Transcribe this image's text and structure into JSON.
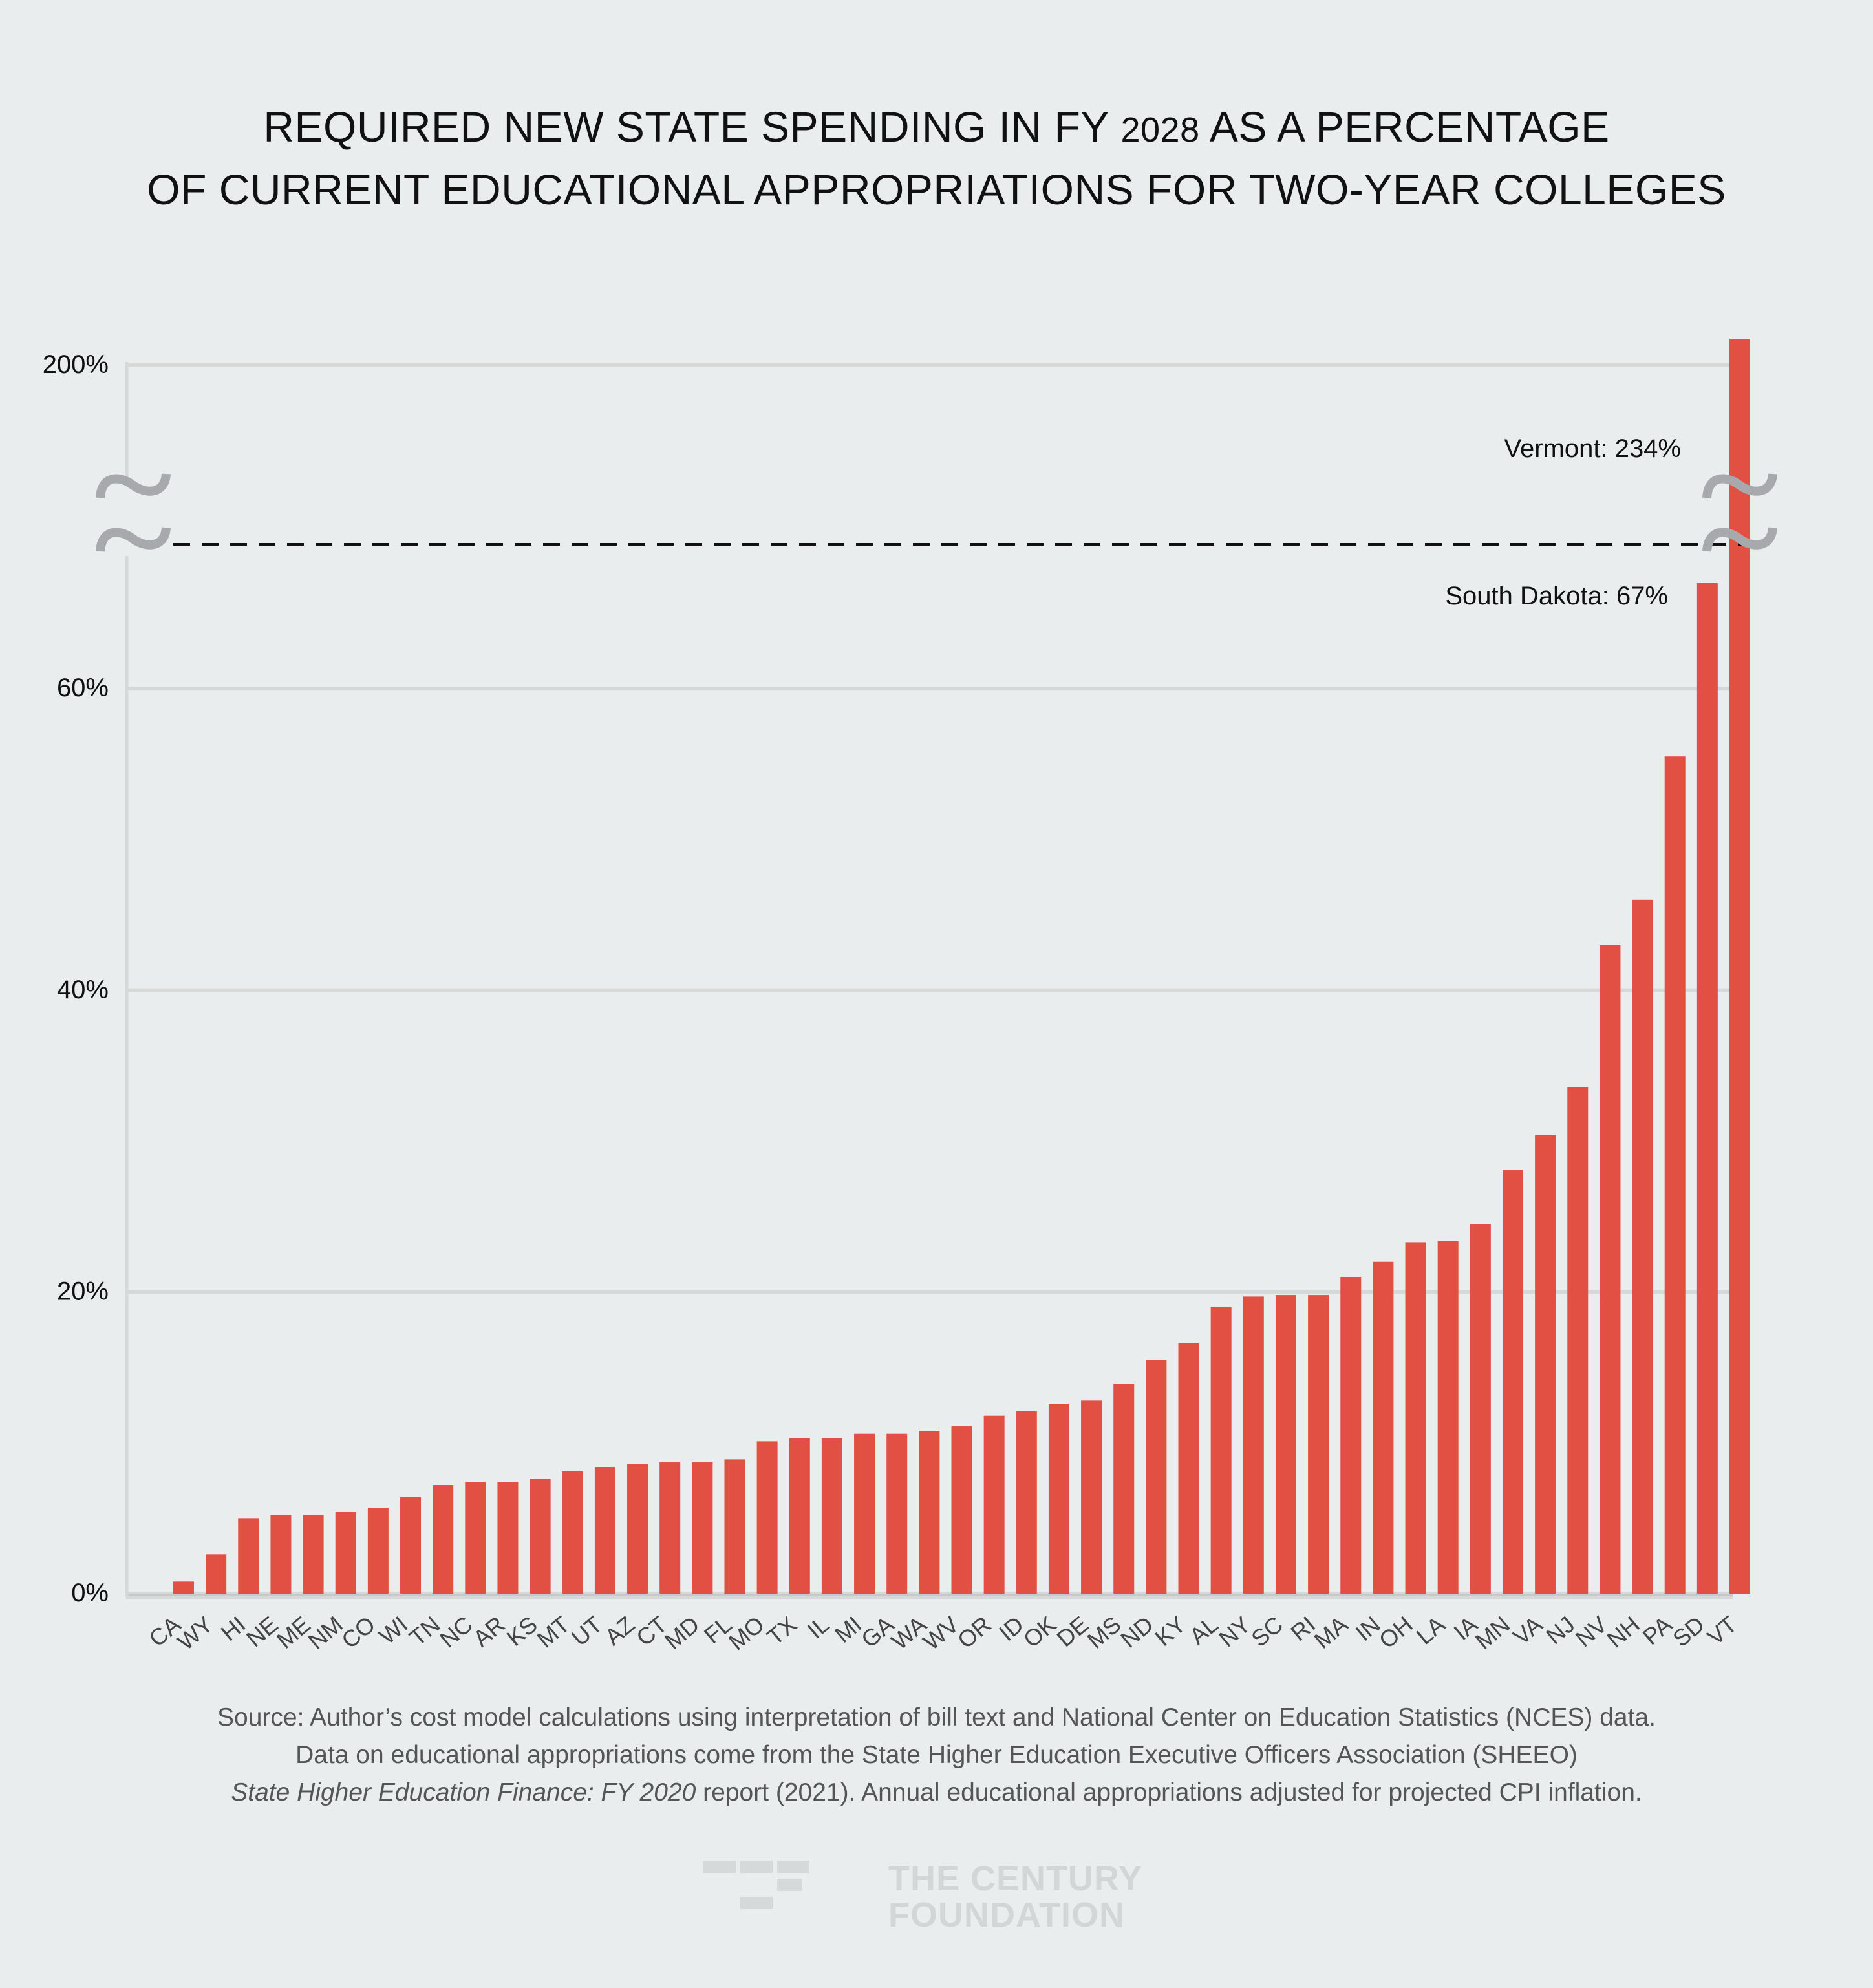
{
  "title": {
    "line1_pre": "REQUIRED NEW STATE SPENDING IN FY ",
    "line1_num": "2028",
    "line1_post": " AS A PERCENTAGE",
    "line2": "OF CURRENT EDUCATIONAL APPROPRIATIONS FOR TWO-YEAR COLLEGES"
  },
  "colors": {
    "bar": "#e24f43",
    "background": "#e9edee",
    "grid": "#d7d9d9",
    "break_mark": "#a7a9ac"
  },
  "chart_data": {
    "type": "bar",
    "title": "Required New State Spending in FY 2028 as a Percentage of Current Educational Appropriations for Two-Year Colleges",
    "xlabel": "",
    "ylabel": "",
    "ylim": [
      0,
      240
    ],
    "axis_break": {
      "from": 70,
      "to": 190
    },
    "grid": true,
    "y_ticks": [
      "0%",
      "20%",
      "40%",
      "60%",
      "200%"
    ],
    "y_tick_values": [
      0,
      20,
      40,
      60,
      200
    ],
    "categories": [
      "CA",
      "WY",
      "HI",
      "NE",
      "ME",
      "NM",
      "CO",
      "WI",
      "TN",
      "NC",
      "AR",
      "KS",
      "MT",
      "UT",
      "AZ",
      "CT",
      "MD",
      "FL",
      "MO",
      "TX",
      "IL",
      "MI",
      "GA",
      "WA",
      "WV",
      "OR",
      "ID",
      "OK",
      "DE",
      "MS",
      "ND",
      "KY",
      "AL",
      "NY",
      "SC",
      "RI",
      "MA",
      "IN",
      "OH",
      "LA",
      "IA",
      "MN",
      "VA",
      "NJ",
      "NV",
      "NH",
      "PA",
      "SD",
      "VT"
    ],
    "values": [
      0.8,
      2.6,
      5.0,
      5.2,
      5.2,
      5.4,
      5.7,
      6.4,
      7.2,
      7.4,
      7.4,
      7.6,
      8.1,
      8.4,
      8.6,
      8.7,
      8.7,
      8.9,
      10.1,
      10.3,
      10.3,
      10.6,
      10.6,
      10.8,
      11.1,
      11.8,
      12.1,
      12.6,
      12.8,
      13.9,
      15.5,
      16.6,
      19.0,
      19.7,
      19.8,
      19.8,
      21.0,
      22.0,
      23.3,
      23.4,
      24.5,
      28.1,
      30.4,
      33.6,
      43.0,
      46.0,
      55.5,
      67,
      234
    ],
    "annotations": [
      {
        "state": "VT",
        "text": "Vermont: 234%"
      },
      {
        "state": "SD",
        "text": "South Dakota: 67%"
      }
    ]
  },
  "source": {
    "line1": "Source: Author’s cost model calculations using interpretation of bill text and National Center on Education Statistics (NCES) data.",
    "line2": "Data on educational appropriations come from the State Higher Education Executive Officers Association (SHEEO)",
    "line3_italic": "State Higher Education Finance: FY 2020",
    "line3_rest": " report (2021). Annual educational appropriations adjusted for projected CPI inflation."
  },
  "logo": {
    "line1": "THE CENTURY",
    "line2": "FOUNDATION"
  }
}
